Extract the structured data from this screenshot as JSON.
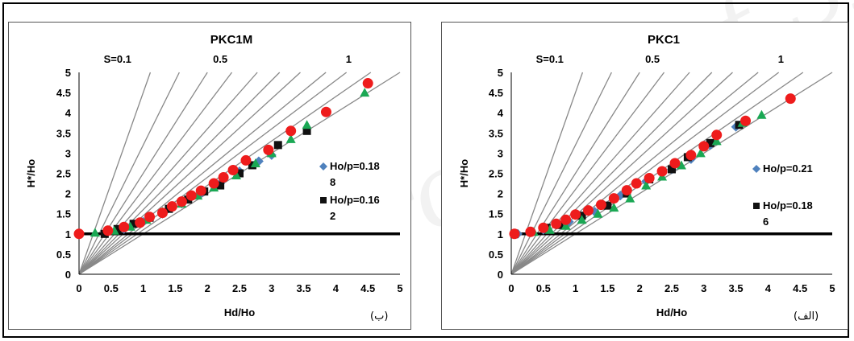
{
  "watermark": "Archive of SID",
  "charts": [
    {
      "panel_label": "(ب)",
      "chart_data": {
        "type": "scatter",
        "title": "PKC1M",
        "xlabel": "Hd/Ho",
        "ylabel": "H*/Ho",
        "xlim": [
          0,
          5
        ],
        "ylim": [
          0,
          5
        ],
        "xticks": [
          0,
          0.5,
          1,
          1.5,
          2,
          2.5,
          3,
          3.5,
          4,
          4.5,
          5
        ],
        "yticks": [
          0,
          0.5,
          1,
          1.5,
          2,
          2.5,
          3,
          3.5,
          4,
          4.5,
          5
        ],
        "top_labels": [
          {
            "text": "S=0.1",
            "x": 0.6
          },
          {
            "text": "0.5",
            "x": 2.2
          },
          {
            "text": "1",
            "x": 4.2
          }
        ],
        "guide_slopes": [
          1,
          1.1,
          1.2,
          1.3,
          1.45,
          1.6,
          1.8,
          2.1,
          2.5,
          3.2,
          4.5
        ],
        "reference_line_y": 1,
        "grid": false,
        "legend_position": "right",
        "legend": [
          {
            "marker": "diamond",
            "line1": "Ho/p=0.18",
            "line2": "8"
          },
          {
            "marker": "square",
            "line1": "Ho/p=0.16",
            "line2": "2"
          }
        ],
        "series": [
          {
            "marker": "diamond",
            "color": "#4f81bd",
            "points": [
              [
                0.45,
                1.06
              ],
              [
                0.7,
                1.12
              ],
              [
                1.0,
                1.3
              ],
              [
                1.3,
                1.5
              ],
              [
                1.6,
                1.75
              ],
              [
                1.9,
                2.0
              ],
              [
                2.2,
                2.25
              ],
              [
                2.5,
                2.55
              ],
              [
                2.8,
                2.8
              ],
              [
                3.0,
                2.95
              ]
            ]
          },
          {
            "marker": "square",
            "color": "#111111",
            "points": [
              [
                0.4,
                1.0
              ],
              [
                0.6,
                1.12
              ],
              [
                0.85,
                1.25
              ],
              [
                1.1,
                1.4
              ],
              [
                1.4,
                1.62
              ],
              [
                1.7,
                1.85
              ],
              [
                1.95,
                2.05
              ],
              [
                2.2,
                2.2
              ],
              [
                2.5,
                2.5
              ],
              [
                2.7,
                2.7
              ],
              [
                3.1,
                3.2
              ],
              [
                3.55,
                3.55
              ]
            ]
          },
          {
            "marker": "triangle",
            "color": "#1aa854",
            "points": [
              [
                0.25,
                1.03
              ],
              [
                0.55,
                1.08
              ],
              [
                0.8,
                1.18
              ],
              [
                1.05,
                1.35
              ],
              [
                1.3,
                1.55
              ],
              [
                1.6,
                1.75
              ],
              [
                1.85,
                1.95
              ],
              [
                2.1,
                2.15
              ],
              [
                2.45,
                2.45
              ],
              [
                2.75,
                2.75
              ],
              [
                3.0,
                3.0
              ],
              [
                3.3,
                3.35
              ],
              [
                3.55,
                3.7
              ],
              [
                4.45,
                4.5
              ]
            ]
          },
          {
            "marker": "circle",
            "color": "#ee1c1c",
            "points": [
              [
                0.0,
                1.0
              ],
              [
                0.45,
                1.08
              ],
              [
                0.7,
                1.17
              ],
              [
                0.95,
                1.28
              ],
              [
                1.1,
                1.42
              ],
              [
                1.3,
                1.52
              ],
              [
                1.45,
                1.68
              ],
              [
                1.6,
                1.8
              ],
              [
                1.75,
                1.95
              ],
              [
                1.9,
                2.07
              ],
              [
                2.1,
                2.25
              ],
              [
                2.25,
                2.4
              ],
              [
                2.4,
                2.58
              ],
              [
                2.6,
                2.82
              ],
              [
                2.95,
                3.08
              ],
              [
                3.3,
                3.55
              ],
              [
                3.85,
                4.02
              ],
              [
                4.5,
                4.73
              ]
            ]
          }
        ]
      }
    },
    {
      "panel_label": "(الف)",
      "chart_data": {
        "type": "scatter",
        "title": "PKC1",
        "xlabel": "Hd/Ho",
        "ylabel": "H*/Ho",
        "xlim": [
          0,
          5
        ],
        "ylim": [
          0,
          5
        ],
        "xticks": [
          0,
          0.5,
          1,
          1.5,
          2,
          2.5,
          3,
          3.5,
          4,
          4.5,
          5
        ],
        "yticks": [
          0,
          0.5,
          1,
          1.5,
          2,
          2.5,
          3,
          3.5,
          4,
          4.5,
          5
        ],
        "top_labels": [
          {
            "text": "S=0.1",
            "x": 0.6
          },
          {
            "text": "0.5",
            "x": 2.2
          },
          {
            "text": "1",
            "x": 4.2
          }
        ],
        "guide_slopes": [
          1,
          1.1,
          1.2,
          1.3,
          1.45,
          1.6,
          1.8,
          2.1,
          2.5,
          3.2,
          4.5
        ],
        "reference_line_y": 1,
        "grid": false,
        "legend_position": "right",
        "legend": [
          {
            "marker": "diamond",
            "line1": "Ho/p=0.21",
            "line2": ""
          },
          {
            "marker": "square",
            "line1": "Ho/p=0.18",
            "line2": "6"
          }
        ],
        "series": [
          {
            "marker": "diamond",
            "color": "#4f81bd",
            "points": [
              [
                0.1,
                1.0
              ],
              [
                0.5,
                1.1
              ],
              [
                0.9,
                1.3
              ],
              [
                1.3,
                1.55
              ],
              [
                1.7,
                1.95
              ],
              [
                2.1,
                2.3
              ],
              [
                2.5,
                2.6
              ],
              [
                2.8,
                2.85
              ],
              [
                3.1,
                3.2
              ],
              [
                3.5,
                3.65
              ]
            ]
          },
          {
            "marker": "square",
            "color": "#111111",
            "points": [
              [
                0.05,
                1.0
              ],
              [
                0.55,
                1.15
              ],
              [
                0.75,
                1.22
              ],
              [
                1.1,
                1.45
              ],
              [
                1.5,
                1.7
              ],
              [
                1.8,
                2.0
              ],
              [
                2.15,
                2.35
              ],
              [
                2.5,
                2.6
              ],
              [
                2.75,
                2.9
              ],
              [
                3.1,
                3.25
              ],
              [
                3.55,
                3.7
              ]
            ]
          },
          {
            "marker": "triangle",
            "color": "#1aa854",
            "points": [
              [
                0.35,
                1.05
              ],
              [
                0.6,
                1.1
              ],
              [
                0.85,
                1.2
              ],
              [
                1.1,
                1.35
              ],
              [
                1.35,
                1.5
              ],
              [
                1.6,
                1.65
              ],
              [
                1.85,
                1.88
              ],
              [
                2.1,
                2.2
              ],
              [
                2.35,
                2.42
              ],
              [
                2.65,
                2.7
              ],
              [
                2.95,
                3.0
              ],
              [
                3.2,
                3.3
              ],
              [
                3.6,
                3.75
              ],
              [
                3.9,
                3.95
              ]
            ]
          },
          {
            "marker": "circle",
            "color": "#ee1c1c",
            "points": [
              [
                0.05,
                1.0
              ],
              [
                0.3,
                1.05
              ],
              [
                0.5,
                1.15
              ],
              [
                0.7,
                1.25
              ],
              [
                0.85,
                1.35
              ],
              [
                1.0,
                1.48
              ],
              [
                1.2,
                1.58
              ],
              [
                1.4,
                1.72
              ],
              [
                1.6,
                1.88
              ],
              [
                1.8,
                2.08
              ],
              [
                1.95,
                2.25
              ],
              [
                2.15,
                2.38
              ],
              [
                2.35,
                2.55
              ],
              [
                2.55,
                2.75
              ],
              [
                2.8,
                2.95
              ],
              [
                3.0,
                3.17
              ],
              [
                3.2,
                3.45
              ],
              [
                3.65,
                3.8
              ],
              [
                4.35,
                4.35
              ]
            ]
          }
        ]
      }
    }
  ]
}
